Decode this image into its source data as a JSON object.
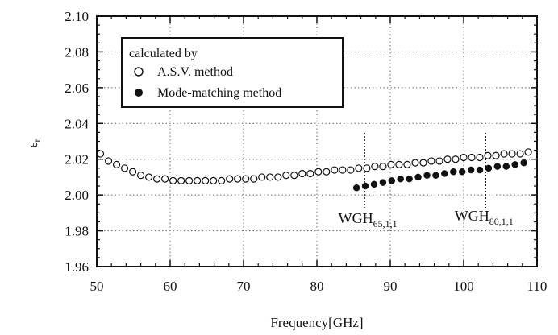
{
  "chart_data": {
    "type": "scatter",
    "xlabel": "Frequency[GHz]",
    "ylabel": "ε_r",
    "ylabel_main": "ε",
    "ylabel_sub": "r",
    "xlim": [
      50,
      110
    ],
    "ylim": [
      1.96,
      2.1
    ],
    "xticks": [
      50,
      60,
      70,
      80,
      90,
      100,
      110
    ],
    "xtick_labels": [
      "50",
      "60",
      "70",
      "80",
      "90",
      "100",
      "110"
    ],
    "yticks": [
      1.96,
      1.98,
      2.0,
      2.02,
      2.04,
      2.06,
      2.08,
      2.1
    ],
    "ytick_labels": [
      "1.96",
      "1.98",
      "2.00",
      "2.02",
      "2.04",
      "2.06",
      "2.08",
      "2.10"
    ],
    "grid": "dotted",
    "legend": {
      "title": "calculated by",
      "placement": "top-left",
      "entries": [
        "A.S.V. method",
        "Mode-matching method"
      ]
    },
    "series": [
      {
        "name": "A.S.V. method",
        "marker": "open-circle",
        "x": [
          50.5,
          51.6,
          52.7,
          53.8,
          54.9,
          56.0,
          57.1,
          58.2,
          59.3,
          60.4,
          61.5,
          62.6,
          63.7,
          64.8,
          65.9,
          67.0,
          68.1,
          69.2,
          70.3,
          71.4,
          72.5,
          73.6,
          74.7,
          75.8,
          76.9,
          78.0,
          79.1,
          80.2,
          81.3,
          82.4,
          83.5,
          84.6,
          85.7,
          86.8,
          87.9,
          89.0,
          90.1,
          91.2,
          92.3,
          93.4,
          94.5,
          95.6,
          96.7,
          97.8,
          98.9,
          100.0,
          101.1,
          102.2,
          103.3,
          104.4,
          105.5,
          106.6,
          107.7,
          108.8
        ],
        "y": [
          2.023,
          2.019,
          2.017,
          2.015,
          2.013,
          2.011,
          2.01,
          2.009,
          2.009,
          2.008,
          2.008,
          2.008,
          2.008,
          2.008,
          2.008,
          2.008,
          2.009,
          2.009,
          2.009,
          2.009,
          2.01,
          2.01,
          2.01,
          2.011,
          2.011,
          2.012,
          2.012,
          2.013,
          2.013,
          2.014,
          2.014,
          2.014,
          2.015,
          2.015,
          2.016,
          2.016,
          2.017,
          2.017,
          2.017,
          2.018,
          2.018,
          2.019,
          2.019,
          2.02,
          2.02,
          2.021,
          2.021,
          2.021,
          2.022,
          2.022,
          2.023,
          2.023,
          2.023,
          2.024
        ]
      },
      {
        "name": "Mode-matching method",
        "marker": "filled-circle",
        "x": [
          85.4,
          86.6,
          87.8,
          89.0,
          90.2,
          91.4,
          92.6,
          93.8,
          95.0,
          96.2,
          97.4,
          98.6,
          99.8,
          101.0,
          102.2,
          103.4,
          104.6,
          105.8,
          107.0,
          108.2
        ],
        "y": [
          2.004,
          2.005,
          2.006,
          2.007,
          2.008,
          2.009,
          2.009,
          2.01,
          2.011,
          2.011,
          2.012,
          2.013,
          2.013,
          2.014,
          2.014,
          2.015,
          2.016,
          2.016,
          2.017,
          2.018
        ]
      }
    ],
    "annotations": [
      {
        "main": "WGH",
        "sub": "65,1,1",
        "x": 86.5
      },
      {
        "main": "WGH",
        "sub": "80,1,1",
        "x": 103.0
      }
    ]
  }
}
